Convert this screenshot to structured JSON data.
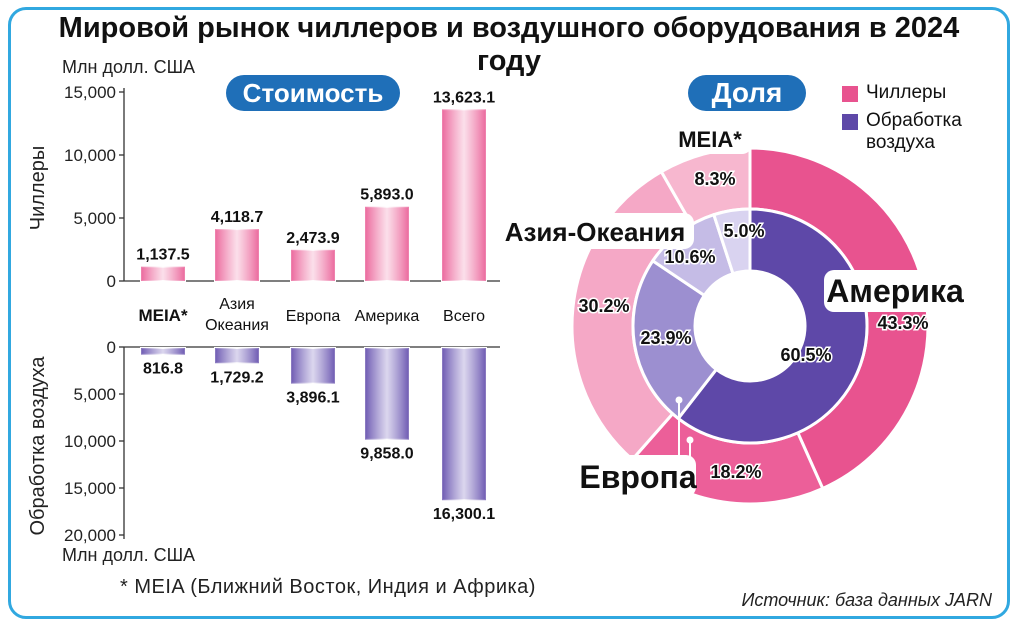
{
  "title": "Мировой рынок чиллеров и воздушного оборудования в 2024 году",
  "unit_label": "Млн долл. США",
  "value_badge": "Стоимость",
  "share_badge": "Доля",
  "footnote": "* MEIA (Ближний Восток, Индия и Африка)",
  "source": "Источник: база данных JARN",
  "colors": {
    "chillers": "#e8538f",
    "chillers_light": "#f5a8c6",
    "air": "#5e48a8",
    "air_light": "#9c8fd0"
  },
  "chart_data": [
    {
      "type": "bar",
      "title": "Стоимость",
      "categories": [
        "MEIA*",
        "Азия Океания",
        "Европа",
        "Америка",
        "Всего"
      ],
      "category_lines": [
        [
          "MEIA*"
        ],
        [
          "Азия",
          "Океания"
        ],
        [
          "Европа"
        ],
        [
          "Америка"
        ],
        [
          "Всего"
        ]
      ],
      "series": [
        {
          "name": "Чиллеры",
          "values": [
            1137.5,
            4118.7,
            2473.9,
            5893.0,
            13623.1
          ],
          "labels": [
            "1,137.5",
            "4,118.7",
            "2,473.9",
            "5,893.0",
            "13,623.1"
          ]
        },
        {
          "name": "Обработка воздуха",
          "values": [
            816.8,
            1729.2,
            3896.1,
            9858.0,
            16300.1
          ],
          "labels": [
            "816.8",
            "1,729.2",
            "3,896.1",
            "9,858.0",
            "16,300.1"
          ]
        }
      ],
      "upper_axis": {
        "label": "Чиллеры",
        "ylim": [
          0,
          15000
        ],
        "ticks": [
          0,
          5000,
          10000,
          15000
        ],
        "tick_labels": [
          "0",
          "5,000",
          "10,000",
          "15,000"
        ]
      },
      "lower_axis": {
        "label": "Обработка воздуха",
        "ylim": [
          0,
          20000
        ],
        "ticks": [
          0,
          5000,
          10000,
          15000,
          20000
        ],
        "tick_labels": [
          "0",
          "5,000",
          "10,000",
          "15,000",
          "20,000"
        ]
      },
      "units": "Млн долл. США"
    },
    {
      "type": "pie",
      "title": "Доля",
      "legend": [
        "Чиллеры",
        "Обработка воздуха"
      ],
      "legend_lines": [
        [
          "Чиллеры"
        ],
        [
          "Обработка",
          "воздуха"
        ]
      ],
      "legend_position": "top-right",
      "outer_ring": {
        "series": "Чиллеры",
        "slices": [
          {
            "region": "Америка",
            "value": 43.3,
            "label": "43.3%"
          },
          {
            "region": "Европа",
            "value": 18.2,
            "label": "18.2%"
          },
          {
            "region": "Азия-Океания",
            "value": 30.2,
            "label": "30.2%"
          },
          {
            "region": "MEIA*",
            "value": 8.3,
            "label": "8.3%"
          }
        ]
      },
      "inner_ring": {
        "series": "Обработка воздуха",
        "slices": [
          {
            "region": "Америка",
            "value": 60.5,
            "label": "60.5%"
          },
          {
            "region": "Европа",
            "value": 23.9,
            "label": "23.9%"
          },
          {
            "region": "Азия-Океания",
            "value": 10.6,
            "label": "10.6%"
          },
          {
            "region": "MEIA*",
            "value": 5.0,
            "label": "5.0%"
          }
        ]
      },
      "region_labels": [
        "Америка",
        "Европа",
        "Азия-Океания",
        "MEIA*"
      ]
    }
  ]
}
